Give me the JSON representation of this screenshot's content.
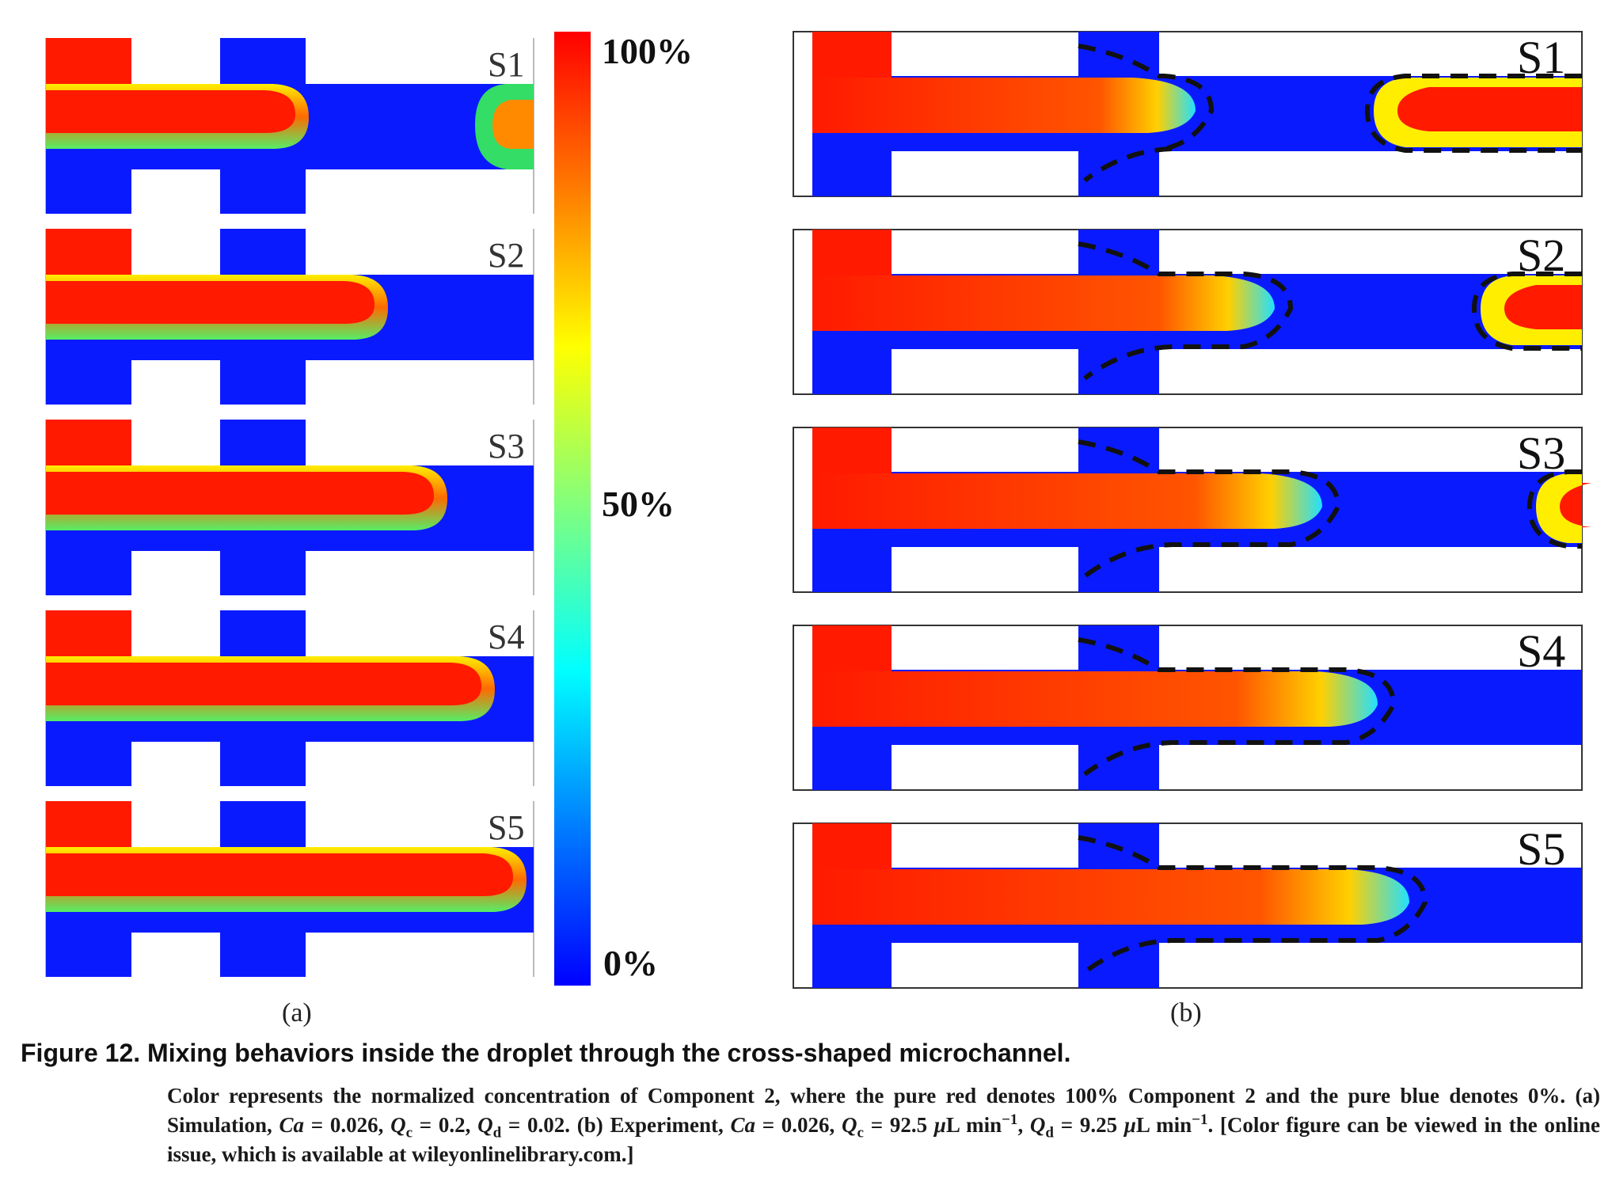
{
  "figure": {
    "panel_a": {
      "rows": [
        "S1",
        "S2",
        "S3",
        "S4",
        "S5"
      ],
      "sublabel": "(a)"
    },
    "panel_b": {
      "rows": [
        "S1",
        "S2",
        "S3",
        "S4",
        "S5"
      ],
      "sublabel": "(b)"
    },
    "colorbar": {
      "labels": [
        "100%",
        "50%",
        "0%"
      ],
      "colors": [
        "#ff0000",
        "#ff7f00",
        "#ffff00",
        "#7fff7f",
        "#00ffff",
        "#0080ff",
        "#0000ff"
      ]
    }
  },
  "caption": {
    "title": "Figure 12. Mixing behaviors inside the droplet through the cross-shaped microchannel.",
    "part1": "Color represents the normalized concentration of Component 2, where the pure red denotes 100% Component 2 and the pure blue denotes 0%. (a) Simulation, ",
    "ca_sym": "Ca",
    "eq1": " = 0.026, ",
    "q_sym": "Q",
    "c_sub": "c",
    "eq2": " = 0.2, ",
    "d_sub": "d",
    "eq3": " = 0.02. (b) Experiment, ",
    "eq4": " = 0.026, ",
    "eq5": " = 92.5 ",
    "mu": "μ",
    "unit": "L min",
    "sup": "−1",
    "eq6": ", ",
    "eq7": " = 9.25 ",
    "tail": ". [Color figure can be viewed in the online issue, which is available at wileyonlinelibrary.com.]"
  },
  "palette": {
    "red": "#ff1a00",
    "blue": "#0a1aff",
    "green": "#33dd66",
    "yellow": "#ffee00",
    "cyan": "#22d6ff",
    "orange": "#ff8a00"
  }
}
